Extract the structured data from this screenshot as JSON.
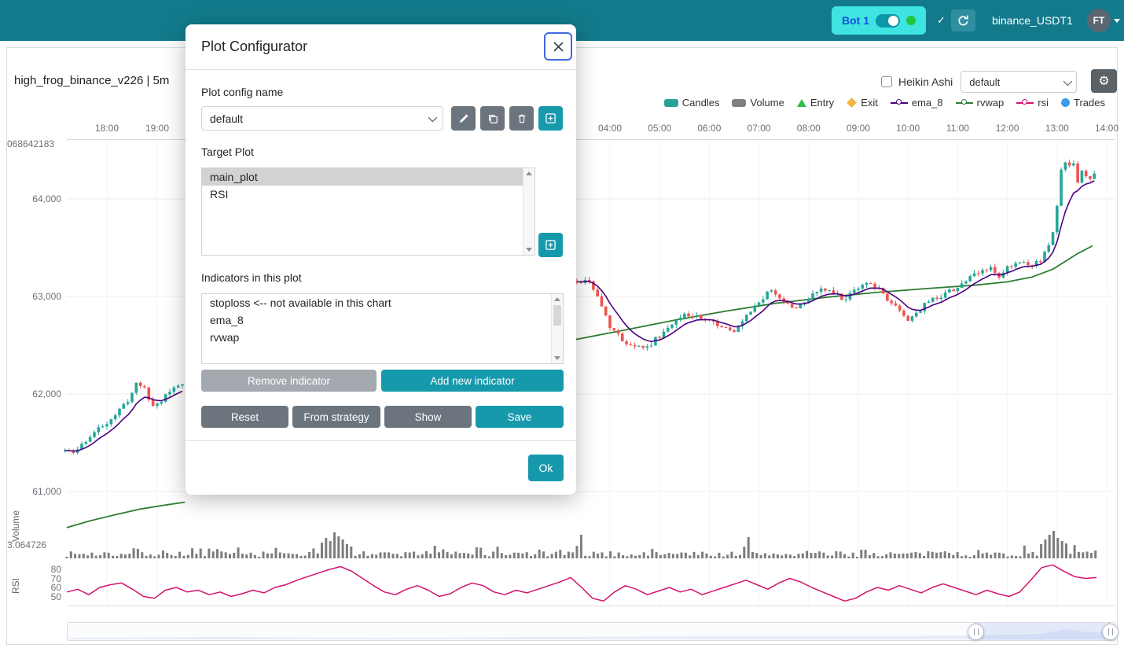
{
  "header": {
    "bot": {
      "label": "Bot 1"
    },
    "check_icon": "✓",
    "pair_label": "binance_USDT1",
    "avatar_initials": "FT"
  },
  "chart": {
    "title": "high_frog_binance_v226 | 5m",
    "heikin_ashi_label": "Heikin Ashi",
    "plot_select_value": "default",
    "legend": [
      {
        "label": "Candles",
        "marker": "rect",
        "color": "#2aa198"
      },
      {
        "label": "Volume",
        "marker": "rect",
        "color": "#808080"
      },
      {
        "label": "Entry",
        "marker": "triangle",
        "color": "#2bbf4e"
      },
      {
        "label": "Exit",
        "marker": "diamond",
        "color": "#f2b33d"
      },
      {
        "label": "ema_8",
        "marker": "line",
        "color": "#4b0082"
      },
      {
        "label": "rvwap",
        "marker": "line",
        "color": "#2e7d32"
      },
      {
        "label": "rsi",
        "marker": "line",
        "color": "#d4126e"
      },
      {
        "label": "Trades",
        "marker": "circle",
        "color": "#3d9be9"
      }
    ],
    "axes": {
      "time_ticks_left": [
        "18:00",
        "19:00"
      ],
      "time_ticks_right": [
        "04:00",
        "05:00",
        "06:00",
        "07:00",
        "08:00",
        "09:00",
        "10:00",
        "11:00",
        "12:00",
        "13:00",
        "14:00"
      ],
      "price_ticks": [
        "64,000",
        "63,000",
        "62,000",
        "61,000"
      ],
      "price_tick_values": [
        64000,
        63000,
        62000,
        61000
      ],
      "top_left_label": "068642183",
      "volume_axis_label": "3.064726",
      "volume_axis_title": "Volume",
      "rsi_axis_title": "RSI",
      "rsi_ticks": [
        "80",
        "70",
        "60",
        "50"
      ],
      "rsi_tick_values": [
        80,
        70,
        60,
        50
      ]
    }
  },
  "modal": {
    "title": "Plot Configurator",
    "config_name_label": "Plot config name",
    "config_name_value": "default",
    "target_plot_label": "Target Plot",
    "target_plots": [
      {
        "name": "main_plot",
        "selected": true
      },
      {
        "name": "RSI",
        "selected": false
      }
    ],
    "indicators_label": "Indicators in this plot",
    "indicators": [
      "stoploss <-- not available in this chart",
      "ema_8",
      "rvwap"
    ],
    "buttons": {
      "remove": "Remove indicator",
      "add": "Add new indicator",
      "reset": "Reset",
      "from_strategy": "From strategy",
      "show": "Show",
      "save": "Save",
      "ok": "Ok"
    }
  },
  "chart_data": {
    "type": "candlestick",
    "title": "high_frog_binance_v226 | 5m",
    "timeframe_minutes": 5,
    "ylim": [
      60400,
      64800
    ],
    "price_anchors_left_min_from_1800": [
      [
        -50,
        61420
      ],
      [
        -42,
        61380
      ],
      [
        -34,
        61440
      ],
      [
        -26,
        61520
      ],
      [
        -18,
        61580
      ],
      [
        -10,
        61640
      ],
      [
        -2,
        61700
      ],
      [
        6,
        61760
      ],
      [
        14,
        61820
      ],
      [
        22,
        61900
      ],
      [
        30,
        62010
      ],
      [
        37,
        62140
      ],
      [
        44,
        62060
      ],
      [
        50,
        61950
      ],
      [
        56,
        61870
      ],
      [
        64,
        61930
      ],
      [
        72,
        62010
      ],
      [
        80,
        62060
      ],
      [
        87,
        62090
      ],
      [
        93,
        62110
      ]
    ],
    "price_anchors_right_min_from_0400": [
      [
        -40,
        63150
      ],
      [
        -25,
        63170
      ],
      [
        -10,
        62900
      ],
      [
        0,
        62700
      ],
      [
        15,
        62550
      ],
      [
        30,
        62500
      ],
      [
        45,
        62480
      ],
      [
        60,
        62600
      ],
      [
        75,
        62700
      ],
      [
        90,
        62820
      ],
      [
        105,
        62780
      ],
      [
        120,
        62740
      ],
      [
        135,
        62700
      ],
      [
        150,
        62620
      ],
      [
        165,
        62790
      ],
      [
        180,
        62950
      ],
      [
        195,
        63060
      ],
      [
        210,
        62950
      ],
      [
        225,
        62870
      ],
      [
        240,
        62990
      ],
      [
        255,
        63080
      ],
      [
        270,
        63030
      ],
      [
        285,
        62970
      ],
      [
        300,
        63090
      ],
      [
        315,
        63150
      ],
      [
        330,
        63020
      ],
      [
        345,
        62890
      ],
      [
        360,
        62760
      ],
      [
        370,
        62830
      ],
      [
        385,
        62950
      ],
      [
        400,
        63010
      ],
      [
        420,
        63100
      ],
      [
        435,
        63190
      ],
      [
        450,
        63260
      ],
      [
        460,
        63300
      ],
      [
        470,
        63180
      ],
      [
        480,
        63290
      ],
      [
        495,
        63340
      ],
      [
        510,
        63300
      ],
      [
        520,
        63380
      ],
      [
        530,
        63520
      ],
      [
        537,
        63750
      ],
      [
        543,
        64150
      ],
      [
        548,
        64480
      ],
      [
        553,
        64280
      ],
      [
        558,
        64470
      ],
      [
        563,
        64150
      ],
      [
        570,
        64290
      ],
      [
        578,
        64180
      ],
      [
        586,
        64260
      ]
    ],
    "rvwap_left": [
      [
        -48,
        60630
      ],
      [
        -20,
        60700
      ],
      [
        10,
        60762
      ],
      [
        40,
        60820
      ],
      [
        70,
        60862
      ],
      [
        93,
        60890
      ]
    ],
    "rvwap_right": [
      [
        -41,
        62560
      ],
      [
        20,
        62660
      ],
      [
        80,
        62760
      ],
      [
        140,
        62850
      ],
      [
        200,
        62930
      ],
      [
        260,
        62990
      ],
      [
        320,
        63040
      ],
      [
        380,
        63080
      ],
      [
        440,
        63115
      ],
      [
        480,
        63150
      ],
      [
        510,
        63200
      ],
      [
        535,
        63280
      ],
      [
        550,
        63360
      ],
      [
        565,
        63440
      ],
      [
        583,
        63520
      ]
    ],
    "rsi_values": [
      55,
      58,
      52,
      60,
      63,
      65,
      58,
      50,
      48,
      57,
      60,
      55,
      57,
      52,
      55,
      50,
      53,
      57,
      54,
      60,
      63,
      68,
      72,
      76,
      80,
      83,
      78,
      70,
      62,
      55,
      52,
      58,
      62,
      57,
      50,
      53,
      60,
      65,
      62,
      55,
      52,
      57,
      54,
      58,
      62,
      66,
      71,
      60,
      48,
      45,
      55,
      62,
      58,
      52,
      56,
      60,
      55,
      58,
      52,
      56,
      60,
      64,
      68,
      63,
      58,
      65,
      70,
      66,
      60,
      55,
      50,
      45,
      48,
      55,
      60,
      57,
      62,
      58,
      54,
      60,
      64,
      60,
      56,
      52,
      57,
      53,
      50,
      55,
      68,
      82,
      85,
      78,
      72,
      70,
      71
    ],
    "rsi_range_drawn": [
      40,
      88
    ],
    "volume_spikes": {
      "61": 20,
      "62": 26,
      "63": 22,
      "64": 33,
      "65": 28,
      "66": 24,
      "67": 18,
      "68": 15,
      "88": 16,
      "98": 14,
      "123": 30,
      "140": 12,
      "163": 27,
      "190": 11,
      "210": 9,
      "233": 18,
      "234": 24,
      "235": 30,
      "236": 35,
      "237": 26,
      "238": 22,
      "239": 19,
      "246": 10
    }
  }
}
